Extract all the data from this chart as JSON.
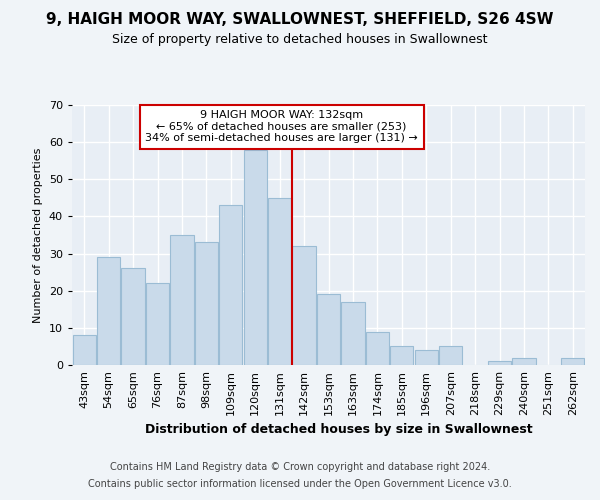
{
  "title1": "9, HAIGH MOOR WAY, SWALLOWNEST, SHEFFIELD, S26 4SW",
  "title2": "Size of property relative to detached houses in Swallownest",
  "xlabel": "Distribution of detached houses by size in Swallownest",
  "ylabel": "Number of detached properties",
  "footer1": "Contains HM Land Registry data © Crown copyright and database right 2024.",
  "footer2": "Contains public sector information licensed under the Open Government Licence v3.0.",
  "annotation_line1": "9 HAIGH MOOR WAY: 132sqm",
  "annotation_line2": "← 65% of detached houses are smaller (253)",
  "annotation_line3": "34% of semi-detached houses are larger (131) →",
  "bar_labels": [
    "43sqm",
    "54sqm",
    "65sqm",
    "76sqm",
    "87sqm",
    "98sqm",
    "109sqm",
    "120sqm",
    "131sqm",
    "142sqm",
    "153sqm",
    "163sqm",
    "174sqm",
    "185sqm",
    "196sqm",
    "207sqm",
    "218sqm",
    "229sqm",
    "240sqm",
    "251sqm",
    "262sqm"
  ],
  "bar_values": [
    8,
    29,
    26,
    22,
    35,
    33,
    43,
    58,
    45,
    32,
    19,
    17,
    9,
    5,
    4,
    5,
    0,
    1,
    2,
    0,
    2
  ],
  "bar_color": "#c9daea",
  "bar_edge_color": "#9bbcd4",
  "vline_color": "#cc0000",
  "vline_x": 8.5,
  "ylim": [
    0,
    70
  ],
  "yticks": [
    0,
    10,
    20,
    30,
    40,
    50,
    60,
    70
  ],
  "background_color": "#f0f4f8",
  "plot_bg_color": "#e8eef5",
  "grid_color": "#ffffff",
  "annotation_box_facecolor": "#ffffff",
  "annotation_box_edgecolor": "#cc0000",
  "title1_fontsize": 11,
  "title2_fontsize": 9,
  "xlabel_fontsize": 9,
  "ylabel_fontsize": 8,
  "tick_fontsize": 8,
  "annotation_fontsize": 8,
  "footer_fontsize": 7
}
